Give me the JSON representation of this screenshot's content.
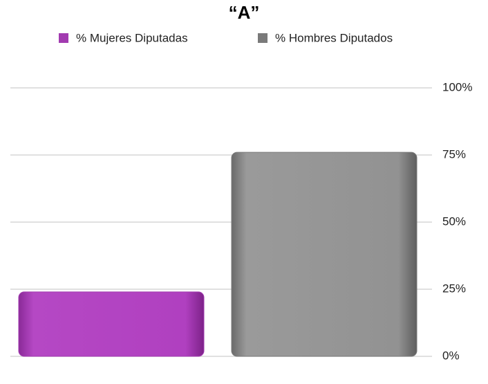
{
  "chart_data": {
    "type": "bar",
    "title": "“A”",
    "categories": [
      null
    ],
    "series": [
      {
        "name": "% Mujeres Diputadas",
        "color": "#a23bb0",
        "values": [
          24
        ]
      },
      {
        "name": "% Hombres Diputados",
        "color": "#7a7a7a",
        "values": [
          76
        ]
      }
    ],
    "ylim": [
      0,
      100
    ],
    "yticks": [
      {
        "value": 0,
        "label": "0%"
      },
      {
        "value": 25,
        "label": "25%"
      },
      {
        "value": 50,
        "label": "50%"
      },
      {
        "value": 75,
        "label": "75%"
      },
      {
        "value": 100,
        "label": "100%"
      }
    ],
    "grid": true,
    "legend": "top"
  }
}
